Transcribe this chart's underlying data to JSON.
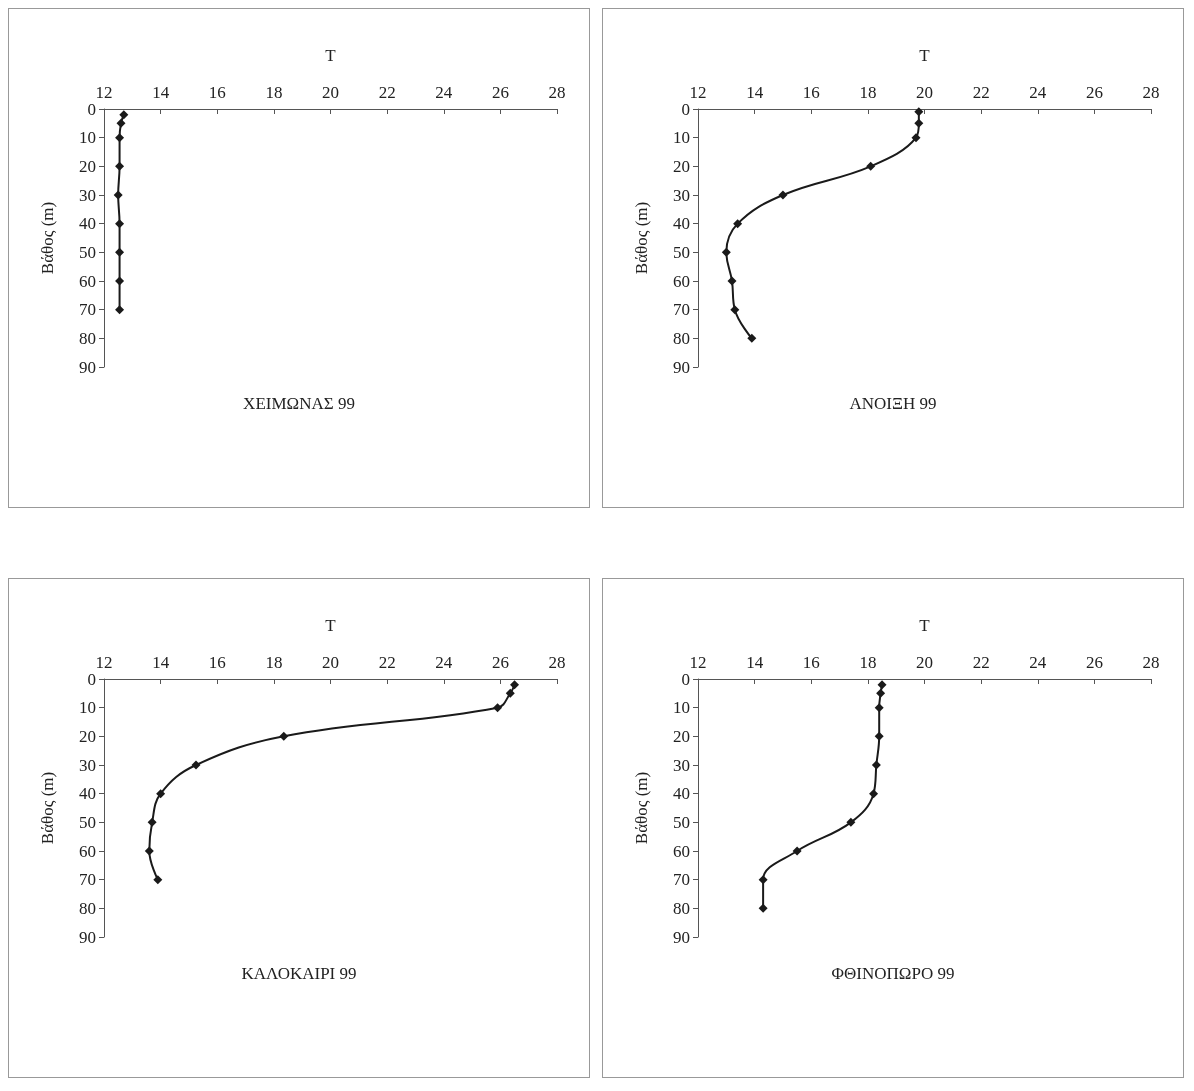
{
  "chart_data": [
    {
      "type": "line",
      "title": "ΧΕΙΜΩΝΑΣ 99",
      "xlabel": "T",
      "ylabel": "Βάθος (m)",
      "color": "#1a1a1a",
      "marker": "diamond",
      "grid": false,
      "xlim": [
        12,
        28
      ],
      "xticks": [
        12,
        14,
        16,
        18,
        20,
        22,
        24,
        26,
        28
      ],
      "ylim": [
        90,
        0
      ],
      "yticks": [
        0,
        10,
        20,
        30,
        40,
        50,
        60,
        70,
        80,
        90
      ],
      "x": [
        12.7,
        12.6,
        12.55,
        12.55,
        12.5,
        12.55,
        12.55,
        12.55,
        12.55
      ],
      "values": [
        2,
        5,
        10,
        20,
        30,
        40,
        50,
        60,
        70
      ]
    },
    {
      "type": "line",
      "title": "ΑΝΟΙΞΗ 99",
      "xlabel": "T",
      "ylabel": "Βάθος (m)",
      "color": "#1a1a1a",
      "marker": "diamond",
      "grid": false,
      "xlim": [
        12,
        28
      ],
      "xticks": [
        12,
        14,
        16,
        18,
        20,
        22,
        24,
        26,
        28
      ],
      "ylim": [
        90,
        0
      ],
      "yticks": [
        0,
        10,
        20,
        30,
        40,
        50,
        60,
        70,
        80,
        90
      ],
      "x": [
        19.8,
        19.8,
        19.7,
        18.1,
        15,
        13.4,
        13,
        13.2,
        13.3,
        13.9
      ],
      "values": [
        1,
        5,
        10,
        20,
        30,
        40,
        50,
        60,
        70,
        80
      ]
    },
    {
      "type": "line",
      "title": "ΚΑΛΟΚΑΙΡΙ 99",
      "xlabel": "T",
      "ylabel": "Βάθος (m)",
      "color": "#1a1a1a",
      "marker": "diamond",
      "grid": false,
      "xlim": [
        12,
        28
      ],
      "xticks": [
        12,
        14,
        16,
        18,
        20,
        22,
        24,
        26,
        28
      ],
      "ylim": [
        90,
        0
      ],
      "yticks": [
        0,
        10,
        20,
        30,
        40,
        50,
        60,
        70,
        80,
        90
      ],
      "x": [
        26.5,
        26.35,
        25.9,
        18.35,
        15.25,
        14,
        13.7,
        13.6,
        13.9
      ],
      "values": [
        2,
        5,
        10,
        20,
        30,
        40,
        50,
        60,
        70
      ]
    },
    {
      "type": "line",
      "title": "ΦΘΙΝΟΠΩΡΟ 99",
      "xlabel": "T",
      "ylabel": "Βάθος (m)",
      "color": "#1a1a1a",
      "marker": "diamond",
      "grid": false,
      "xlim": [
        12,
        28
      ],
      "xticks": [
        12,
        14,
        16,
        18,
        20,
        22,
        24,
        26,
        28
      ],
      "ylim": [
        90,
        0
      ],
      "yticks": [
        0,
        10,
        20,
        30,
        40,
        50,
        60,
        70,
        80,
        90
      ],
      "x": [
        18.5,
        18.45,
        18.4,
        18.4,
        18.3,
        18.2,
        17.4,
        15.5,
        14.3,
        14.3
      ],
      "values": [
        2,
        5,
        10,
        20,
        30,
        40,
        50,
        60,
        70,
        80
      ]
    }
  ]
}
